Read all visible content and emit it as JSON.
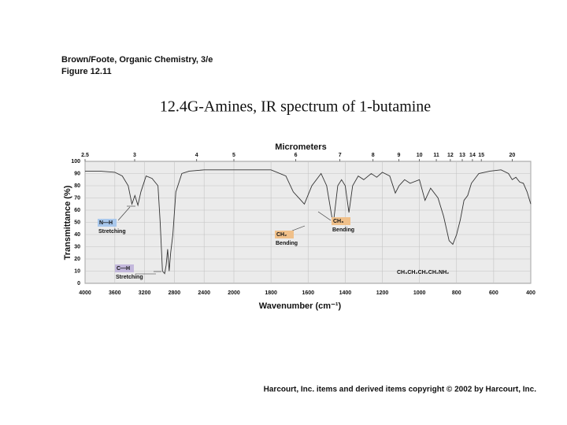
{
  "header": {
    "source": "Brown/Foote, Organic Chemistry, 3/e",
    "figure": "Figure 12.11"
  },
  "chart_data": {
    "type": "line",
    "title": "12.4G-Amines, IR spectrum of 1-butamine",
    "x_label": "Wavenumber (cm⁻¹)",
    "y_label": "Transmittance (%)",
    "x2_label": "Micrometers",
    "xlim": [
      4000,
      400
    ],
    "scale_break": 2000,
    "xticks": [
      4000,
      3600,
      3200,
      2800,
      2400,
      2000,
      1800,
      1600,
      1400,
      1200,
      1000,
      800,
      600,
      400
    ],
    "x2ticks": [
      2.5,
      3,
      4,
      5,
      6,
      7,
      8,
      9,
      10,
      11,
      12,
      13,
      14,
      15,
      20
    ],
    "ylim": [
      0,
      100
    ],
    "yticks": [
      0,
      10,
      20,
      30,
      40,
      50,
      60,
      70,
      80,
      90,
      100
    ],
    "grid": true,
    "color": "#333333",
    "x": [
      4000,
      3800,
      3600,
      3500,
      3420,
      3370,
      3330,
      3290,
      3250,
      3180,
      3100,
      3020,
      2990,
      2960,
      2930,
      2910,
      2890,
      2870,
      2850,
      2820,
      2780,
      2700,
      2600,
      2400,
      2000,
      1800,
      1720,
      1680,
      1620,
      1580,
      1530,
      1500,
      1465,
      1440,
      1420,
      1400,
      1380,
      1360,
      1330,
      1300,
      1260,
      1230,
      1200,
      1160,
      1130,
      1110,
      1080,
      1050,
      1000,
      970,
      940,
      900,
      870,
      840,
      820,
      800,
      780,
      760,
      740,
      720,
      680,
      620,
      560,
      520,
      500,
      480,
      460,
      440,
      420,
      400
    ],
    "values": [
      92,
      92,
      91,
      88,
      80,
      65,
      72,
      64,
      75,
      88,
      86,
      80,
      50,
      10,
      8,
      15,
      28,
      10,
      25,
      40,
      75,
      90,
      92,
      93,
      93,
      93,
      88,
      75,
      65,
      80,
      90,
      80,
      48,
      80,
      85,
      80,
      58,
      80,
      88,
      85,
      90,
      87,
      91,
      88,
      74,
      80,
      85,
      82,
      85,
      68,
      78,
      70,
      55,
      35,
      32,
      40,
      52,
      68,
      72,
      82,
      90,
      92,
      93,
      90,
      85,
      87,
      83,
      82,
      75,
      65
    ],
    "annotations": [
      {
        "label": "N—H",
        "text": "Stretching",
        "color": "#a9c8ec"
      },
      {
        "label": "C—H",
        "text": "Stretching",
        "color": "#c3b8dc"
      },
      {
        "label": "CH₂",
        "text": "Bending",
        "color": "#f0c08a"
      },
      {
        "label": "CH₃",
        "text": "Bending",
        "color": "#f0c08a"
      }
    ],
    "formula": "CH₃CH₂CH₂CH₂NH₂"
  },
  "footer": "Harcourt, Inc. items and derived items copyright © 2002 by Harcourt, Inc."
}
